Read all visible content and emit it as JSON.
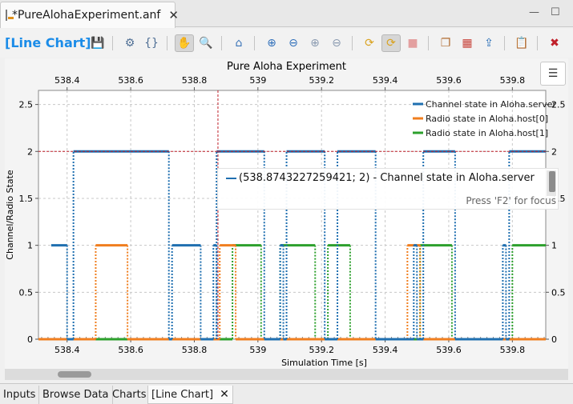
{
  "editor": {
    "tab_title": "*PureAlohaExperiment.anf",
    "tab_close": "✕",
    "minimize": "—",
    "maximize": "☐"
  },
  "toolbar": {
    "view_title": "[Line Chart]",
    "buttons": [
      {
        "name": "save-icon",
        "glyph": "💾"
      },
      {
        "name": "gear-icon",
        "glyph": "⚙"
      },
      {
        "name": "braces-icon",
        "glyph": "{}"
      },
      {
        "name": "hand-pan-icon",
        "glyph": "✋"
      },
      {
        "name": "zoom-magnifier-icon",
        "glyph": "🔍"
      },
      {
        "name": "home-icon",
        "glyph": "⌂"
      },
      {
        "name": "zoom-in-icon",
        "glyph": "⊕"
      },
      {
        "name": "zoom-out-icon",
        "glyph": "⊖"
      },
      {
        "name": "zoom-in-x-icon",
        "glyph": "⊕"
      },
      {
        "name": "zoom-out-x-icon",
        "glyph": "⊖"
      },
      {
        "name": "refresh-icon",
        "glyph": "⟳"
      },
      {
        "name": "auto-refresh-icon",
        "glyph": "⟳"
      },
      {
        "name": "stop-icon",
        "glyph": "■"
      },
      {
        "name": "copy-icon",
        "glyph": "❐"
      },
      {
        "name": "chart-export-icon",
        "glyph": "▦"
      },
      {
        "name": "export-icon",
        "glyph": "⇪"
      },
      {
        "name": "paste-icon",
        "glyph": "📋"
      },
      {
        "name": "delete-icon",
        "glyph": "✖"
      }
    ]
  },
  "legend_button_glyph": "☰",
  "tooltip": {
    "text": "(538.8743227259421; 2) - Channel state in Aloha.server",
    "hint": "Press 'F2' for focus"
  },
  "bottom_tabs": [
    {
      "label": "Inputs"
    },
    {
      "label": "Browse Data"
    },
    {
      "label": "Charts"
    },
    {
      "label": "[Line Chart]",
      "active": true
    }
  ],
  "bottom_tab_close": "✕",
  "chart_data": {
    "type": "line",
    "title": "Pure Aloha Experiment",
    "xlabel": "Simulation Time [s]",
    "ylabel": "Channel/Radio State",
    "xlim": [
      538.31,
      539.905
    ],
    "ylim": [
      0,
      2.65
    ],
    "x_ticks": [
      "538.4",
      "538.6",
      "538.8",
      "539",
      "539.2",
      "539.4",
      "539.6",
      "539.8"
    ],
    "x_tick_values": [
      538.4,
      538.6,
      538.8,
      539.0,
      539.2,
      539.4,
      539.6,
      539.8
    ],
    "y_ticks": [
      "0",
      "0.5",
      "1",
      "1.5",
      "2",
      "2.5"
    ],
    "y_tick_values": [
      0,
      0.5,
      1,
      1.5,
      2,
      2.5
    ],
    "grid": true,
    "legend_position": "top-right",
    "crosshair": {
      "x": 538.8743227259421,
      "y": 2
    },
    "series": [
      {
        "name": "Channel state in Aloha.server",
        "color": "#1f6fb0",
        "segments": [
          [
            538.35,
            538.4,
            1
          ],
          [
            538.4,
            538.42,
            0
          ],
          [
            538.42,
            538.72,
            2
          ],
          [
            538.72,
            538.73,
            0
          ],
          [
            538.73,
            538.82,
            1
          ],
          [
            538.82,
            538.86,
            0
          ],
          [
            538.86,
            538.87,
            1
          ],
          [
            538.87,
            538.87,
            0
          ],
          [
            538.87,
            539.02,
            2
          ],
          [
            539.02,
            539.07,
            0
          ],
          [
            539.07,
            539.08,
            1
          ],
          [
            539.08,
            539.09,
            0
          ],
          [
            539.09,
            539.21,
            2
          ],
          [
            539.21,
            539.25,
            0
          ],
          [
            539.25,
            539.37,
            2
          ],
          [
            539.37,
            539.49,
            0
          ],
          [
            539.49,
            539.5,
            1
          ],
          [
            539.5,
            539.52,
            0
          ],
          [
            539.52,
            539.62,
            2
          ],
          [
            539.62,
            539.77,
            0
          ],
          [
            539.77,
            539.78,
            1
          ],
          [
            539.78,
            539.79,
            0
          ],
          [
            539.79,
            539.905,
            2
          ]
        ]
      },
      {
        "name": "Radio state in Aloha.host[0]",
        "color": "#f07e1e",
        "segments": [
          [
            538.31,
            538.49,
            0
          ],
          [
            538.49,
            538.59,
            1
          ],
          [
            538.59,
            538.88,
            0
          ],
          [
            538.88,
            538.93,
            1
          ],
          [
            538.93,
            539.47,
            0
          ],
          [
            539.47,
            539.51,
            1
          ],
          [
            539.51,
            539.905,
            0
          ]
        ]
      },
      {
        "name": "Radio state in Aloha.host[1]",
        "color": "#2ca02c",
        "segments": [
          [
            538.31,
            538.92,
            0
          ],
          [
            538.92,
            539.01,
            1
          ],
          [
            539.01,
            539.07,
            0
          ],
          [
            539.07,
            539.18,
            1
          ],
          [
            539.18,
            539.22,
            0
          ],
          [
            539.22,
            539.29,
            1
          ],
          [
            539.29,
            539.51,
            0
          ],
          [
            539.51,
            539.61,
            1
          ],
          [
            539.61,
            539.8,
            0
          ],
          [
            539.8,
            539.905,
            1
          ]
        ]
      }
    ]
  }
}
